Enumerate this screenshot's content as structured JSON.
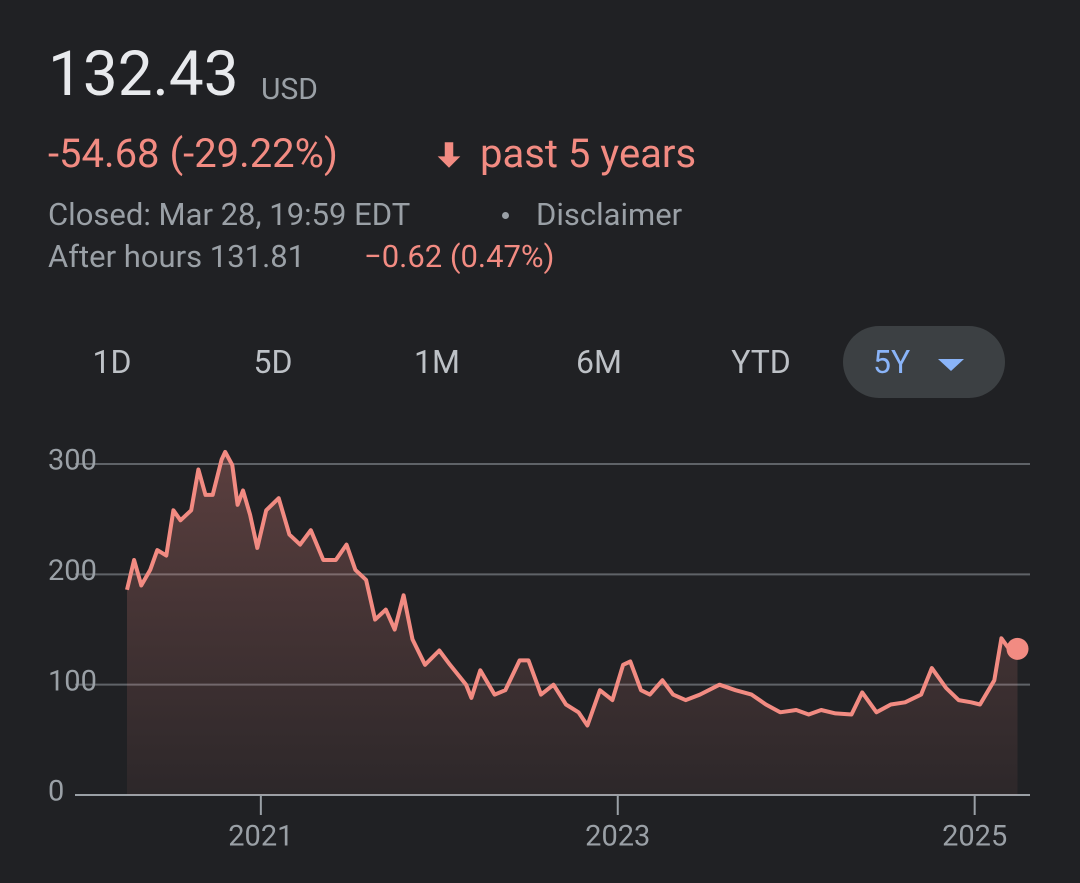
{
  "quote": {
    "price": "132.43",
    "currency": "USD",
    "change": "-54.68 (-29.22%)",
    "period": "past 5 years",
    "closed": "Closed: Mar 28, 19:59 EDT",
    "disclaimer": "Disclaimer",
    "after_hours": "After hours 131.81",
    "after_change": "−0.62 (0.47%)"
  },
  "ranges": [
    "1D",
    "5D",
    "1M",
    "6M",
    "YTD",
    "5Y"
  ],
  "selected_range_index": 5,
  "chart_data": {
    "type": "line",
    "color": "#f28b82",
    "x": [
      2020.25,
      2020.29,
      2020.33,
      2020.38,
      2020.42,
      2020.47,
      2020.51,
      2020.55,
      2020.61,
      2020.65,
      2020.69,
      2020.73,
      2020.78,
      2020.8,
      2020.84,
      2020.87,
      2020.9,
      2020.94,
      2020.98,
      2021.03,
      2021.1,
      2021.16,
      2021.22,
      2021.28,
      2021.35,
      2021.42,
      2021.48,
      2021.53,
      2021.59,
      2021.64,
      2021.7,
      2021.75,
      2021.8,
      2021.85,
      2021.92,
      2022.0,
      2022.06,
      2022.15,
      2022.18,
      2022.23,
      2022.31,
      2022.37,
      2022.45,
      2022.5,
      2022.57,
      2022.64,
      2022.71,
      2022.78,
      2022.83,
      2022.9,
      2022.97,
      2023.03,
      2023.07,
      2023.13,
      2023.18,
      2023.25,
      2023.31,
      2023.38,
      2023.46,
      2023.57,
      2023.66,
      2023.75,
      2023.83,
      2023.91,
      2024.0,
      2024.07,
      2024.14,
      2024.22,
      2024.31,
      2024.37,
      2024.45,
      2024.53,
      2024.61,
      2024.7,
      2024.76,
      2024.84,
      2024.91,
      2024.98,
      2025.03,
      2025.11,
      2025.15,
      2025.19,
      2025.24
    ],
    "values": [
      186,
      213,
      190,
      204,
      222,
      217,
      258,
      249,
      258,
      295,
      272,
      272,
      304,
      311,
      299,
      263,
      276,
      254,
      224,
      258,
      269,
      236,
      227,
      240,
      213,
      213,
      227,
      204,
      195,
      159,
      168,
      150,
      181,
      141,
      118,
      131,
      118,
      100,
      88,
      113,
      91,
      95,
      122,
      122,
      91,
      100,
      82,
      75,
      63,
      95,
      86,
      118,
      121,
      95,
      91,
      104,
      91,
      86,
      91,
      100,
      95,
      91,
      82,
      75,
      77,
      73,
      77,
      74,
      73,
      93,
      75,
      82,
      84,
      91,
      115,
      97,
      86,
      84,
      82,
      104,
      142,
      133,
      132.43
    ],
    "xlim": [
      2020.25,
      2025.31
    ],
    "ylim": [
      0,
      320
    ],
    "xticks": [
      2021,
      2023,
      2025
    ],
    "yticks": [
      0,
      100,
      200,
      300
    ],
    "grid": true
  }
}
